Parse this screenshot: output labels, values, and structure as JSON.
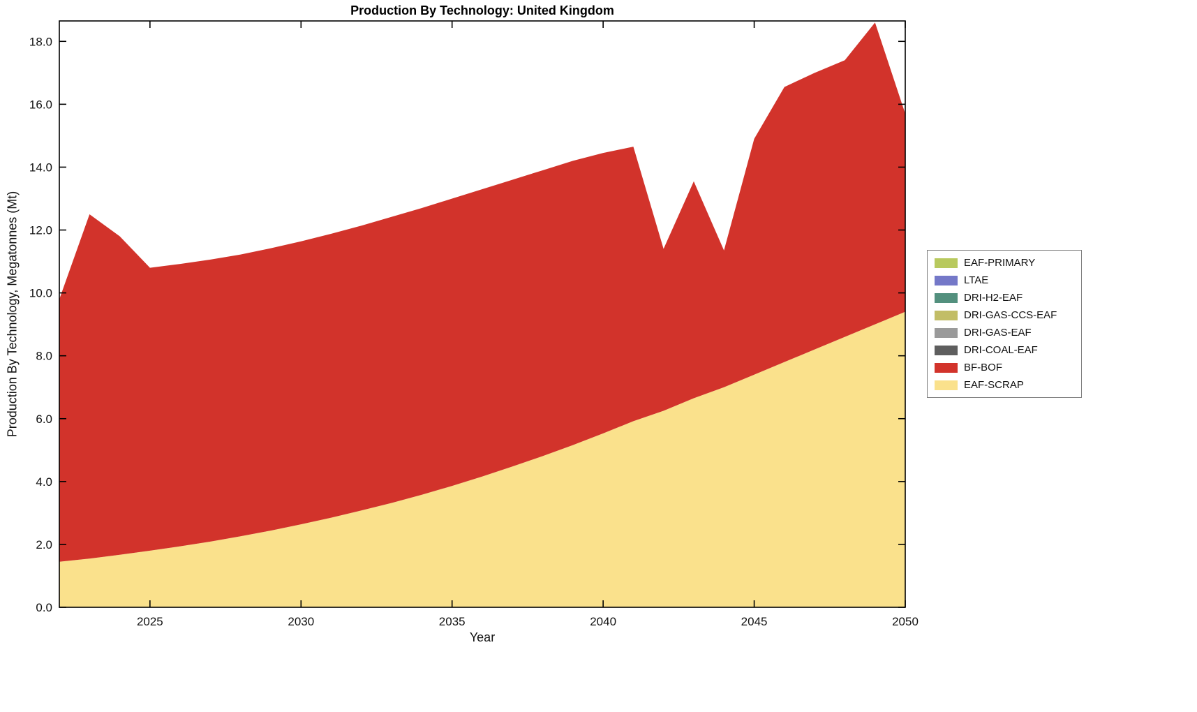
{
  "chart_data": {
    "type": "area",
    "stacked": true,
    "title": "Production By Technology: United Kingdom",
    "xlabel": "Year",
    "ylabel": "Production By Technology, Megatonnes (Mt)",
    "grid": false,
    "legend_position": "right-outside",
    "xlim": [
      2022,
      2050
    ],
    "ylim": [
      0,
      18.65
    ],
    "xticks": [
      2025,
      2030,
      2035,
      2040,
      2045,
      2050
    ],
    "yticks": [
      0,
      2,
      4,
      6,
      8,
      10,
      12,
      14,
      16,
      18
    ],
    "ytick_labels": [
      "0.0",
      "2.0",
      "4.0",
      "6.0",
      "8.0",
      "10.0",
      "12.0",
      "14.0",
      "16.0",
      "18.0"
    ],
    "x": [
      2022,
      2023,
      2024,
      2025,
      2026,
      2027,
      2028,
      2029,
      2030,
      2031,
      2032,
      2033,
      2034,
      2035,
      2036,
      2037,
      2038,
      2039,
      2040,
      2041,
      2042,
      2043,
      2044,
      2045,
      2046,
      2047,
      2048,
      2049,
      2050
    ],
    "legend_order_top_to_bottom": [
      "EAF-PRIMARY",
      "LTAE",
      "DRI-H2-EAF",
      "DRI-GAS-CCS-EAF",
      "DRI-GAS-EAF",
      "DRI-COAL-EAF",
      "BF-BOF",
      "EAF-SCRAP"
    ],
    "series": [
      {
        "name": "EAF-SCRAP",
        "color": "#FAE18C",
        "values": [
          1.45,
          1.55,
          1.67,
          1.8,
          1.94,
          2.09,
          2.26,
          2.44,
          2.64,
          2.85,
          3.08,
          3.32,
          3.58,
          3.86,
          4.16,
          4.48,
          4.81,
          5.16,
          5.53,
          5.92,
          6.25,
          6.65,
          7.0,
          7.4,
          7.8,
          8.2,
          8.6,
          9.0,
          9.4
        ]
      },
      {
        "name": "BF-BOF",
        "color": "#D2332B",
        "values": [
          8.35,
          10.95,
          10.13,
          9.0,
          8.98,
          8.97,
          8.96,
          8.98,
          9.0,
          9.03,
          9.06,
          9.1,
          9.12,
          9.14,
          9.14,
          9.12,
          9.09,
          9.04,
          8.92,
          8.73,
          5.15,
          6.9,
          4.35,
          7.5,
          8.75,
          8.8,
          8.8,
          9.6,
          6.3
        ]
      },
      {
        "name": "DRI-COAL-EAF",
        "color": "#5E5E5E",
        "values": [
          0,
          0,
          0,
          0,
          0,
          0,
          0,
          0,
          0,
          0,
          0,
          0,
          0,
          0,
          0,
          0,
          0,
          0,
          0,
          0,
          0,
          0,
          0,
          0,
          0,
          0,
          0,
          0,
          0
        ]
      },
      {
        "name": "DRI-GAS-EAF",
        "color": "#9A9A9A",
        "values": [
          0,
          0,
          0,
          0,
          0,
          0,
          0,
          0,
          0,
          0,
          0,
          0,
          0,
          0,
          0,
          0,
          0,
          0,
          0,
          0,
          0,
          0,
          0,
          0,
          0,
          0,
          0,
          0,
          0
        ]
      },
      {
        "name": "DRI-GAS-CCS-EAF",
        "color": "#C2BD66",
        "values": [
          0,
          0,
          0,
          0,
          0,
          0,
          0,
          0,
          0,
          0,
          0,
          0,
          0,
          0,
          0,
          0,
          0,
          0,
          0,
          0,
          0,
          0,
          0,
          0,
          0,
          0,
          0,
          0,
          0
        ]
      },
      {
        "name": "DRI-H2-EAF",
        "color": "#53907E",
        "values": [
          0,
          0,
          0,
          0,
          0,
          0,
          0,
          0,
          0,
          0,
          0,
          0,
          0,
          0,
          0,
          0,
          0,
          0,
          0,
          0,
          0,
          0,
          0,
          0,
          0,
          0,
          0,
          0,
          0
        ]
      },
      {
        "name": "LTAE",
        "color": "#7478C8",
        "values": [
          0,
          0,
          0,
          0,
          0,
          0,
          0,
          0,
          0,
          0,
          0,
          0,
          0,
          0,
          0,
          0,
          0,
          0,
          0,
          0,
          0,
          0,
          0,
          0,
          0,
          0,
          0,
          0,
          0
        ]
      },
      {
        "name": "EAF-PRIMARY",
        "color": "#B8C95E",
        "values": [
          0,
          0,
          0,
          0,
          0,
          0,
          0,
          0,
          0,
          0,
          0,
          0,
          0,
          0,
          0,
          0,
          0,
          0,
          0,
          0,
          0,
          0,
          0,
          0,
          0,
          0,
          0,
          0,
          0
        ]
      }
    ]
  }
}
